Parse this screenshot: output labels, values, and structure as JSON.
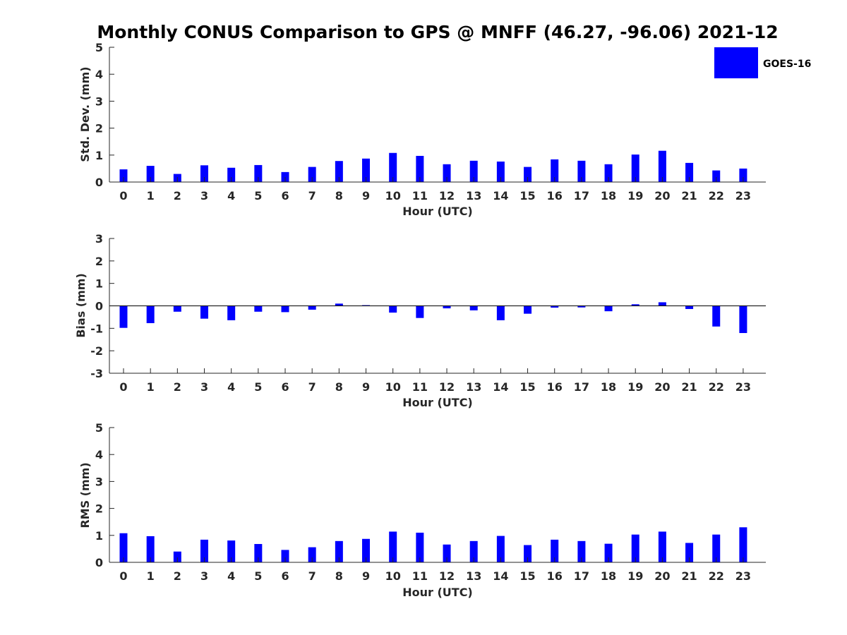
{
  "chart_data": [
    {
      "type": "bar",
      "title": "Monthly CONUS Comparison to GPS @ MNFF (46.27, -96.06) 2021-12",
      "xlabel": "Hour (UTC)",
      "ylabel": "Std. Dev. (mm)",
      "ylim": [
        0,
        5
      ],
      "yticks": [
        0,
        1,
        2,
        3,
        4,
        5
      ],
      "categories": [
        "0",
        "1",
        "2",
        "3",
        "4",
        "5",
        "6",
        "7",
        "8",
        "9",
        "10",
        "11",
        "12",
        "13",
        "14",
        "15",
        "16",
        "17",
        "18",
        "19",
        "20",
        "21",
        "22",
        "23"
      ],
      "series": [
        {
          "name": "GOES-16",
          "color": "#0000ff",
          "values": [
            0.47,
            0.6,
            0.3,
            0.62,
            0.53,
            0.63,
            0.37,
            0.56,
            0.78,
            0.87,
            1.08,
            0.97,
            0.66,
            0.79,
            0.76,
            0.56,
            0.84,
            0.79,
            0.66,
            1.02,
            1.16,
            0.71,
            0.43,
            0.5
          ]
        }
      ],
      "legend": {
        "entries": [
          "GOES-16"
        ],
        "position": "top-right"
      }
    },
    {
      "type": "bar",
      "xlabel": "Hour (UTC)",
      "ylabel": "Bias (mm)",
      "ylim": [
        -3,
        3
      ],
      "yticks": [
        -3,
        -2,
        -1,
        0,
        1,
        2,
        3
      ],
      "categories": [
        "0",
        "1",
        "2",
        "3",
        "4",
        "5",
        "6",
        "7",
        "8",
        "9",
        "10",
        "11",
        "12",
        "13",
        "14",
        "15",
        "16",
        "17",
        "18",
        "19",
        "20",
        "21",
        "22",
        "23"
      ],
      "series": [
        {
          "name": "GOES-16",
          "color": "#0000ff",
          "values": [
            -0.98,
            -0.77,
            -0.26,
            -0.57,
            -0.64,
            -0.26,
            -0.28,
            -0.17,
            0.1,
            0.03,
            -0.3,
            -0.54,
            -0.11,
            -0.2,
            -0.64,
            -0.35,
            -0.08,
            -0.07,
            -0.24,
            0.07,
            0.16,
            -0.14,
            -0.92,
            -1.21
          ]
        }
      ]
    },
    {
      "type": "bar",
      "xlabel": "Hour (UTC)",
      "ylabel": "RMS (mm)",
      "ylim": [
        0,
        5
      ],
      "yticks": [
        0,
        1,
        2,
        3,
        4,
        5
      ],
      "categories": [
        "0",
        "1",
        "2",
        "3",
        "4",
        "5",
        "6",
        "7",
        "8",
        "9",
        "10",
        "11",
        "12",
        "13",
        "14",
        "15",
        "16",
        "17",
        "18",
        "19",
        "20",
        "21",
        "22",
        "23"
      ],
      "series": [
        {
          "name": "GOES-16",
          "color": "#0000ff",
          "values": [
            1.08,
            0.97,
            0.4,
            0.84,
            0.81,
            0.68,
            0.46,
            0.56,
            0.79,
            0.87,
            1.14,
            1.1,
            0.66,
            0.79,
            0.98,
            0.64,
            0.84,
            0.79,
            0.69,
            1.03,
            1.14,
            0.72,
            1.03,
            1.3
          ]
        }
      ]
    }
  ]
}
